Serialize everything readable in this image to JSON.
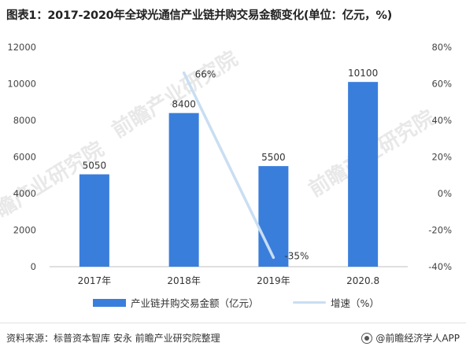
{
  "title": "图表1：2017-2020年全球光通信产业链并购交易金额变化(单位：亿元，%)",
  "watermark": "前瞻产业研究院",
  "legend": {
    "bar_label": "产业链并购交易金额（亿元）",
    "line_label": "增速（%）"
  },
  "footer": {
    "source": "资料来源：标普资本智库 安永 前瞻产业研究院整理",
    "brand": "@前瞻经济学人APP"
  },
  "colors": {
    "bar": "#3a7edb",
    "line": "#c9def2"
  },
  "chart_data": {
    "type": "bar",
    "categories": [
      "2017年",
      "2018年",
      "2019年",
      "2020.8"
    ],
    "series": [
      {
        "type": "bar",
        "axis": "left",
        "values": [
          5050,
          8400,
          5500,
          10100
        ],
        "data_labels": [
          "5050",
          "8400",
          "5500",
          "10100"
        ]
      },
      {
        "type": "line",
        "axis": "right",
        "values": [
          null,
          66,
          -35,
          null
        ],
        "data_labels": [
          "",
          "66%",
          "-35%",
          ""
        ]
      }
    ],
    "ylim_left": [
      0,
      12000
    ],
    "yticks_left": [
      0,
      2000,
      4000,
      6000,
      8000,
      10000,
      12000
    ],
    "ytick_labels_left": [
      "0",
      "2000",
      "4000",
      "6000",
      "8000",
      "10000",
      "12000"
    ],
    "ylim_right": [
      -40,
      80
    ],
    "yticks_right": [
      -40,
      -20,
      0,
      20,
      40,
      60,
      80
    ],
    "ytick_labels_right": [
      "-40%",
      "-20%",
      "0%",
      "20%",
      "40%",
      "60%",
      "80%"
    ],
    "grid": false,
    "legend_position": "bottom"
  }
}
